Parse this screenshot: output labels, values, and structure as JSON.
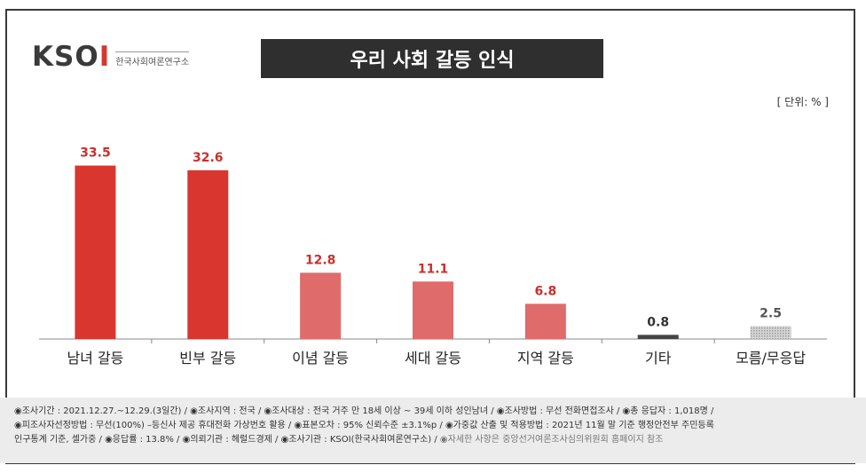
{
  "header": {
    "logo_text": "KSOI",
    "logo_sub": "한국사회여론연구소",
    "title": "우리 사회 갈등 인식",
    "unit": "[ 단위: % ]"
  },
  "chart_data": {
    "type": "bar",
    "title": "우리 사회 갈등 인식",
    "categories": [
      "남녀 갈등",
      "빈부 갈등",
      "이념 갈등",
      "세대 갈등",
      "지역 갈등",
      "기타",
      "모름/무응답"
    ],
    "values": [
      33.5,
      32.6,
      12.8,
      11.1,
      6.8,
      0.8,
      2.5
    ],
    "value_labels": [
      "33.5",
      "32.6",
      "12.8",
      "11.1",
      "6.8",
      "0.8",
      "2.5"
    ],
    "ylim": [
      0,
      36
    ],
    "xlabel": "",
    "ylabel": "",
    "grid": false,
    "colors": {
      "bar_top": "#d8362f",
      "bar_mid": "#e06b6b",
      "bar_other": "#444444",
      "bar_unknown": "#bdbdbd",
      "label_red": "#c9302c",
      "label_gray": "#555555"
    },
    "bar_styles": [
      "top",
      "top",
      "mid",
      "mid",
      "mid",
      "other",
      "unknown"
    ]
  },
  "footer": {
    "line1": "◉조사기간 : 2021.12.27.~12.29.(3일간) / ◉조사지역 : 전국 / ◉조사대상 : 전국 거주 만 18세 이상 ~ 39세 이하 성인남녀 / ◉조사방법 : 무선 전화면접조사 / ◉총 응답자 : 1,018명 /",
    "line2": "◉피조사자선정방법 : 무선(100%) –등신사 제공 휴대전화 가상번호 활용 / ◉표본오차 : 95% 신뢰수준 ±3.1%p / ◉가중값 산출 및 적용방법 : 2021년 11월 말 기준 행정안전부 주민등록",
    "line3": "인구통계 기준, 셀가중 / ◉응답률 : 13.8% / ◉의뢰기관 : 헤럴드경제 / ◉조사기관 : KSOI(한국사회여론연구소) /",
    "line3_note": "◉자세한 사항은 중앙선거여론조사심의위원회 홈페이지 참조"
  }
}
